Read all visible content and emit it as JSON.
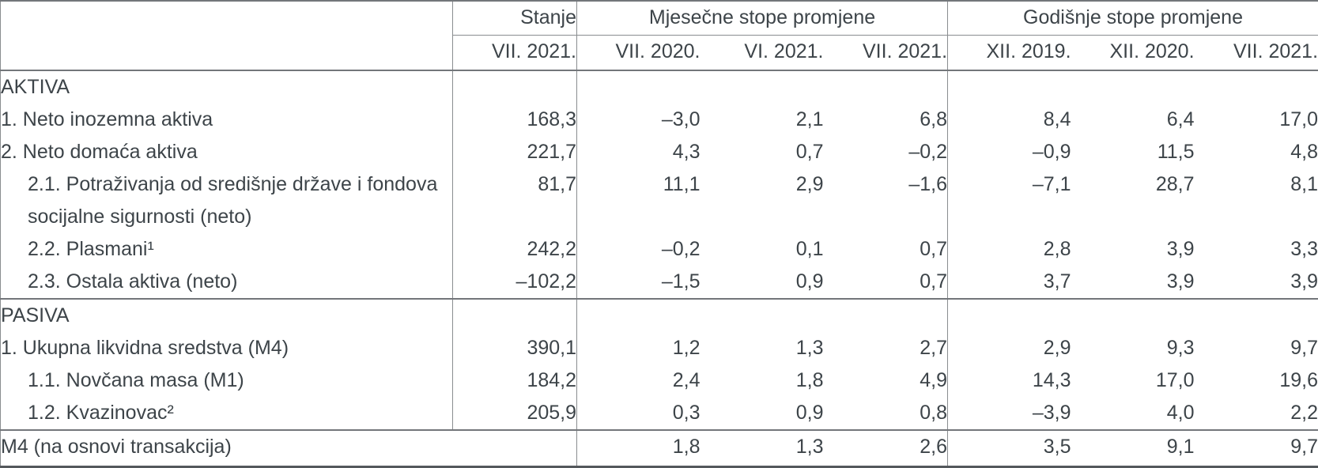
{
  "colors": {
    "text": "#3d4449",
    "border_thin": "#8a8d90",
    "border_thick": "#73767a",
    "border_bottom": "#54585c"
  },
  "table": {
    "header": {
      "stanje": "Stanje",
      "monthly_group": "Mjesečne stope promjene",
      "yearly_group": "Godišnje stope promjene",
      "stanje_period": "VII. 2021.",
      "monthly_periods": [
        "VII. 2020.",
        "VI. 2021.",
        "VII. 2021."
      ],
      "yearly_periods": [
        "XII. 2019.",
        "XII. 2020.",
        "VII. 2021."
      ]
    },
    "rows": [
      {
        "label": "AKTIVA",
        "type": "section",
        "indent": false,
        "tall": false,
        "values": [
          "",
          "",
          "",
          "",
          "",
          "",
          ""
        ]
      },
      {
        "label": "1. Neto inozemna aktiva",
        "type": "item",
        "indent": false,
        "tall": false,
        "values": [
          "168,3",
          "–3,0",
          "2,1",
          "6,8",
          "8,4",
          "6,4",
          "17,0"
        ]
      },
      {
        "label": "2. Neto domaća aktiva",
        "type": "item",
        "indent": false,
        "tall": false,
        "values": [
          "221,7",
          "4,3",
          "0,7",
          "–0,2",
          "–0,9",
          "11,5",
          "4,8"
        ]
      },
      {
        "label": "2.1. Potraživanja od središnje države i fondova socijalne sigurnosti (neto)",
        "type": "item",
        "indent": true,
        "tall": true,
        "values": [
          "81,7",
          "11,1",
          "2,9",
          "–1,6",
          "–7,1",
          "28,7",
          "8,1"
        ]
      },
      {
        "label": "2.2. Plasmani¹",
        "type": "item",
        "indent": true,
        "tall": false,
        "values": [
          "242,2",
          "–0,2",
          "0,1",
          "0,7",
          "2,8",
          "3,9",
          "3,3"
        ]
      },
      {
        "label": "2.3. Ostala aktiva (neto)",
        "type": "item",
        "indent": true,
        "tall": false,
        "values": [
          "–102,2",
          "–1,5",
          "0,9",
          "0,7",
          "3,7",
          "3,9",
          "3,9"
        ]
      },
      {
        "label": "PASIVA",
        "type": "section",
        "indent": false,
        "tall": false,
        "values": [
          "",
          "",
          "",
          "",
          "",
          "",
          ""
        ]
      },
      {
        "label": "1. Ukupna likvidna sredstva (M4)",
        "type": "item",
        "indent": false,
        "tall": false,
        "values": [
          "390,1",
          "1,2",
          "1,3",
          "2,7",
          "2,9",
          "9,3",
          "9,7"
        ]
      },
      {
        "label": "1.1. Novčana masa (M1)",
        "type": "item",
        "indent": true,
        "tall": false,
        "values": [
          "184,2",
          "2,4",
          "1,8",
          "4,9",
          "14,3",
          "17,0",
          "19,6"
        ]
      },
      {
        "label": "1.2. Kvazinovac²",
        "type": "item",
        "indent": true,
        "tall": false,
        "values": [
          "205,9",
          "0,3",
          "0,9",
          "0,8",
          "–3,9",
          "4,0",
          "2,2"
        ]
      },
      {
        "label": "M4 (na osnovi transakcija)",
        "type": "footer",
        "indent": false,
        "tall": false,
        "values": [
          "",
          "1,8",
          "1,3",
          "2,6",
          "3,5",
          "9,1",
          "9,7"
        ]
      }
    ]
  }
}
